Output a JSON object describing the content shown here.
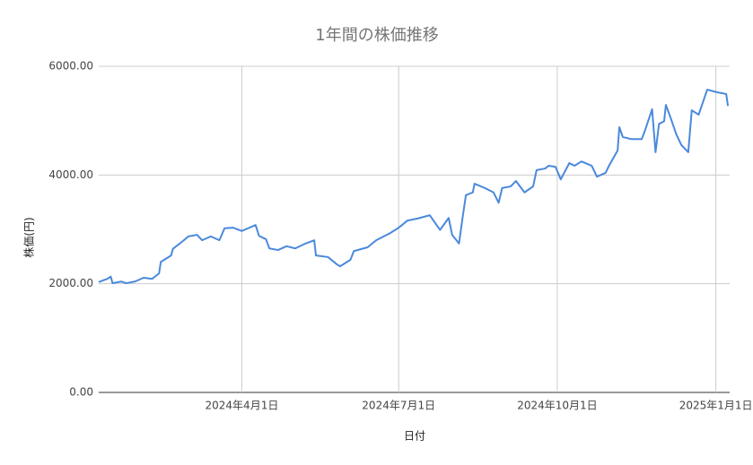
{
  "chart_data": {
    "type": "line",
    "title": "1年間の株価推移",
    "x_label": "日付",
    "y_label": "株価(円)",
    "x": [
      "2024-01-09",
      "2024-01-14",
      "2024-01-16",
      "2024-01-17",
      "2024-01-22",
      "2024-01-25",
      "2024-01-30",
      "2024-02-04",
      "2024-02-09",
      "2024-02-13",
      "2024-02-14",
      "2024-02-20",
      "2024-02-21",
      "2024-02-27",
      "2024-03-01",
      "2024-03-06",
      "2024-03-09",
      "2024-03-14",
      "2024-03-19",
      "2024-03-22",
      "2024-03-27",
      "2024-04-01",
      "2024-04-09",
      "2024-04-11",
      "2024-04-15",
      "2024-04-17",
      "2024-04-22",
      "2024-04-27",
      "2024-05-02",
      "2024-05-08",
      "2024-05-13",
      "2024-05-14",
      "2024-05-21",
      "2024-05-26",
      "2024-05-28",
      "2024-06-03",
      "2024-06-05",
      "2024-06-13",
      "2024-06-18",
      "2024-06-26",
      "2024-07-01",
      "2024-07-06",
      "2024-07-12",
      "2024-07-19",
      "2024-07-25",
      "2024-07-30",
      "2024-08-01",
      "2024-08-05",
      "2024-08-07",
      "2024-08-09",
      "2024-08-13",
      "2024-08-14",
      "2024-08-20",
      "2024-08-25",
      "2024-08-28",
      "2024-08-30",
      "2024-09-04",
      "2024-09-07",
      "2024-09-12",
      "2024-09-17",
      "2024-09-19",
      "2024-09-24",
      "2024-09-26",
      "2024-09-30",
      "2024-10-03",
      "2024-10-08",
      "2024-10-11",
      "2024-10-15",
      "2024-10-21",
      "2024-10-24",
      "2024-10-29",
      "2024-10-31",
      "2024-11-05",
      "2024-11-06",
      "2024-11-08",
      "2024-11-13",
      "2024-11-19",
      "2024-11-21",
      "2024-11-25",
      "2024-11-27",
      "2024-11-29",
      "2024-12-02",
      "2024-12-03",
      "2024-12-06",
      "2024-12-09",
      "2024-12-12",
      "2024-12-16",
      "2024-12-18",
      "2024-12-22",
      "2024-12-27",
      "2025-01-02",
      "2025-01-07",
      "2025-01-08"
    ],
    "series": [
      {
        "name": "株価",
        "color": "#4a89dc",
        "values": [
          2030,
          2090,
          2130,
          2010,
          2040,
          2010,
          2040,
          2110,
          2090,
          2190,
          2400,
          2520,
          2640,
          2790,
          2870,
          2900,
          2800,
          2870,
          2800,
          3020,
          3030,
          2970,
          3080,
          2880,
          2820,
          2650,
          2620,
          2690,
          2650,
          2740,
          2800,
          2520,
          2490,
          2360,
          2320,
          2440,
          2600,
          2670,
          2800,
          2930,
          3030,
          3160,
          3200,
          3260,
          2990,
          3210,
          2900,
          2740,
          3200,
          3630,
          3680,
          3840,
          3760,
          3680,
          3490,
          3760,
          3790,
          3890,
          3680,
          3790,
          4090,
          4120,
          4170,
          4150,
          3920,
          4220,
          4170,
          4250,
          4170,
          3970,
          4040,
          4170,
          4450,
          4880,
          4700,
          4660,
          4660,
          4830,
          5210,
          4420,
          4940,
          4990,
          5290,
          5030,
          4750,
          4550,
          4420,
          5190,
          5110,
          5570,
          5520,
          5490,
          5270
        ]
      }
    ],
    "xlim": [
      "2024-01-09",
      "2025-01-09"
    ],
    "xticks": [
      {
        "value": "2024-04-01",
        "label": "2024年4月1日"
      },
      {
        "value": "2024-07-01",
        "label": "2024年7月1日"
      },
      {
        "value": "2024-10-01",
        "label": "2024年10月1日"
      },
      {
        "value": "2025-01-01",
        "label": "2025年1月1日"
      }
    ],
    "ylim": [
      0,
      6000
    ],
    "yticks": [
      {
        "value": 0,
        "label": "0.00"
      },
      {
        "value": 2000,
        "label": "2000.00"
      },
      {
        "value": 4000,
        "label": "4000.00"
      },
      {
        "value": 6000,
        "label": "6000.00"
      }
    ],
    "grid": true
  }
}
